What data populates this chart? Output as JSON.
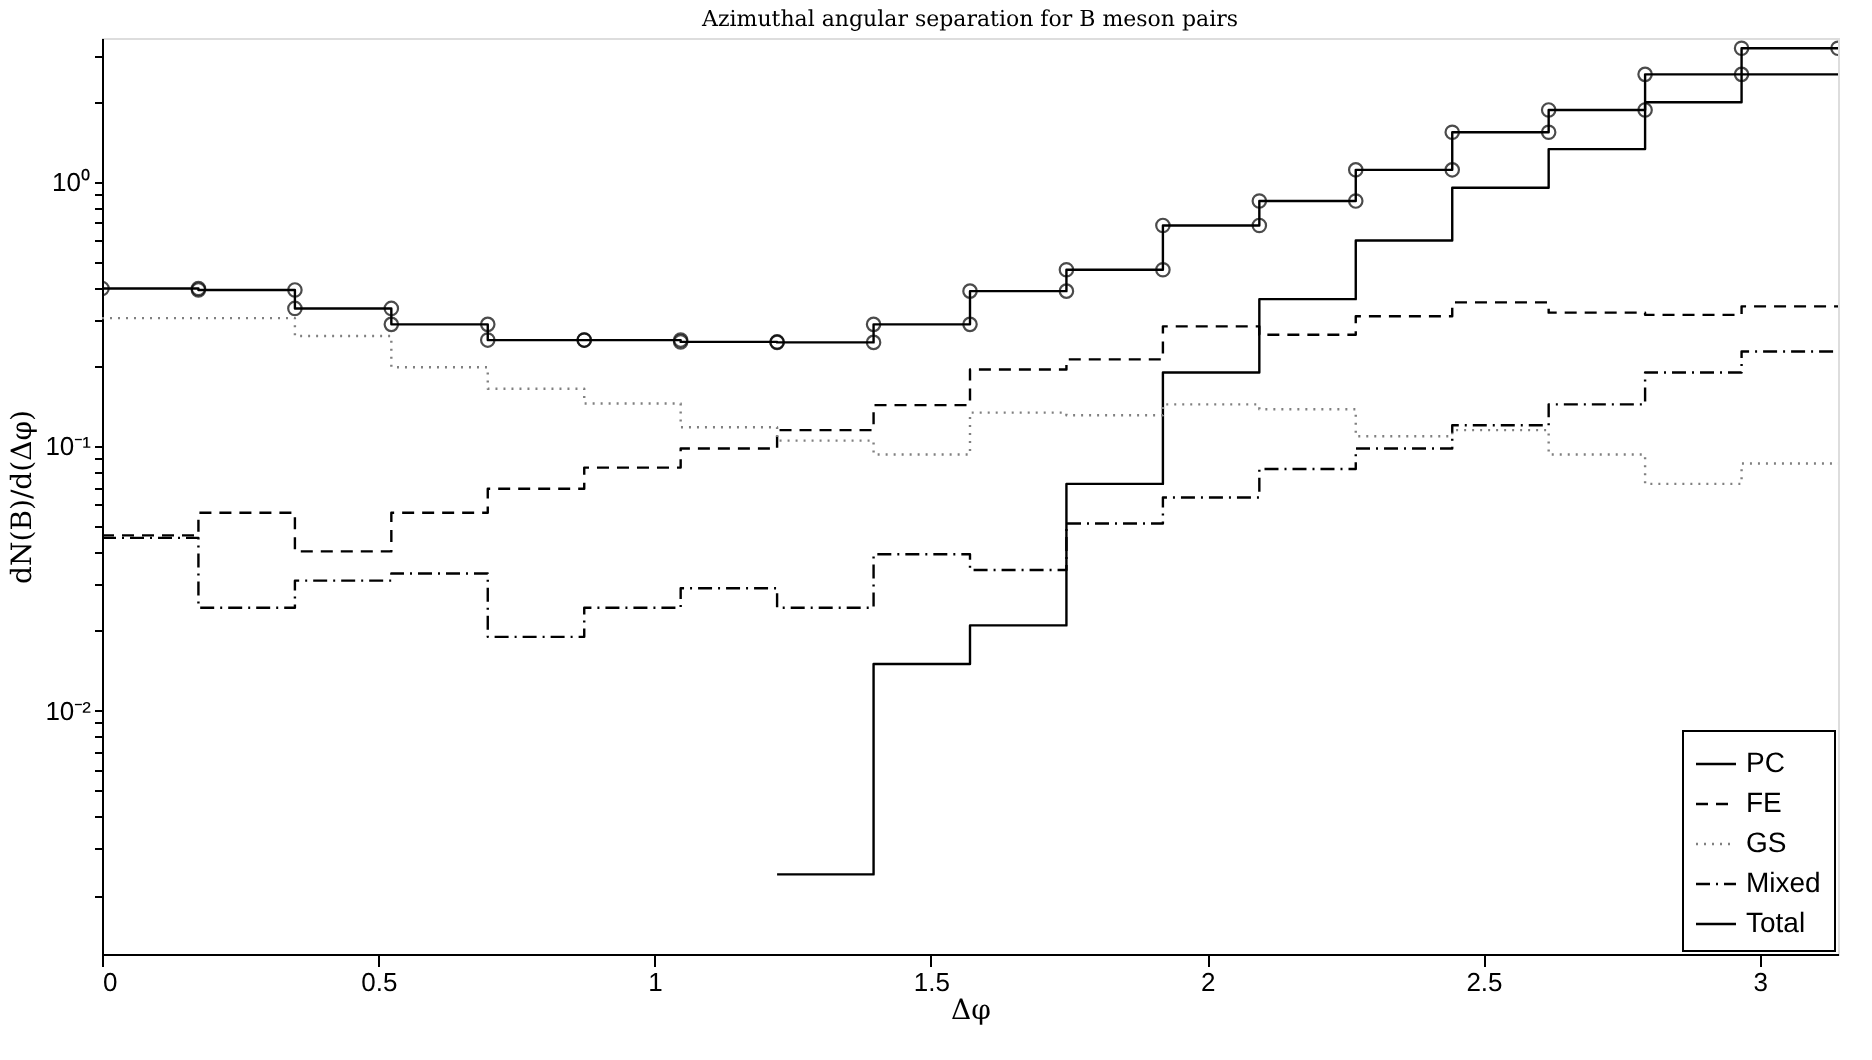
{
  "chart_data": {
    "type": "step",
    "title": "Azimuthal angular separation for B meson pairs",
    "xlabel": "Δφ",
    "ylabel": "dN(B)/d(Δφ)",
    "x": [
      0,
      0.1745,
      0.3491,
      0.5236,
      0.6981,
      0.8727,
      1.0472,
      1.2217,
      1.3963,
      1.5708,
      1.7453,
      1.9199,
      2.0944,
      2.2689,
      2.4435,
      2.618,
      2.7925,
      2.9671,
      3.1416
    ],
    "series": [
      {
        "name": "PC",
        "color": "#000000",
        "line_style": "solid",
        "values": [
          null,
          null,
          null,
          null,
          null,
          null,
          null,
          0.0024,
          0.015,
          0.021,
          0.072,
          0.19,
          0.36,
          0.6,
          0.95,
          1.33,
          2.0,
          2.55,
          2.55
        ]
      },
      {
        "name": "FE",
        "color": "#000000",
        "line_style": "dashed",
        "values": [
          0.046,
          0.056,
          0.04,
          0.056,
          0.069,
          0.083,
          0.098,
          0.115,
          0.143,
          0.195,
          0.213,
          0.284,
          0.264,
          0.31,
          0.35,
          0.32,
          0.314,
          0.338,
          0.338
        ]
      },
      {
        "name": "GS",
        "color": "#808080",
        "line_style": "dotted",
        "values": [
          0.305,
          0.305,
          0.261,
          0.199,
          0.165,
          0.145,
          0.118,
          0.105,
          0.093,
          0.134,
          0.131,
          0.144,
          0.138,
          0.109,
          0.115,
          0.093,
          0.072,
          0.086,
          0.086
        ]
      },
      {
        "name": "Mixed",
        "color": "#000000",
        "line_style": "dashdot",
        "values": [
          0.045,
          0.0245,
          0.031,
          0.033,
          0.019,
          0.0245,
          0.029,
          0.0245,
          0.039,
          0.034,
          0.051,
          0.064,
          0.082,
          0.098,
          0.12,
          0.144,
          0.19,
          0.228,
          0.228
        ]
      },
      {
        "name": "Total",
        "type": "line",
        "color": "#000000",
        "line_style": "solid",
        "marker": "circle",
        "x": [
          0,
          0.1745,
          0.1745,
          0.3491,
          0.3491,
          0.5236,
          0.5236,
          0.6981,
          0.6981,
          0.8727,
          0.8727,
          1.0472,
          1.0472,
          1.2217,
          1.2217,
          1.3963,
          1.3963,
          1.5708,
          1.5708,
          1.7453,
          1.7453,
          1.9199,
          1.9199,
          2.0944,
          2.0944,
          2.2689,
          2.2689,
          2.4435,
          2.4435,
          2.618,
          2.618,
          2.7925,
          2.7925,
          2.9671,
          2.9671,
          3.1416
        ],
        "values": [
          0.395,
          0.395,
          0.39,
          0.39,
          0.332,
          0.332,
          0.289,
          0.289,
          0.252,
          0.252,
          0.252,
          0.252,
          0.248,
          0.248,
          0.247,
          0.247,
          0.289,
          0.289,
          0.386,
          0.386,
          0.465,
          0.465,
          0.684,
          0.684,
          0.846,
          0.846,
          1.11,
          1.11,
          1.54,
          1.54,
          1.87,
          1.87,
          2.55,
          2.55,
          3.2,
          3.2
        ]
      }
    ],
    "log": "y",
    "xlim": [
      0,
      3.1416
    ],
    "ylim": [
      0.0012,
      3.5
    ],
    "xticks": [
      0,
      0.5,
      1,
      1.5,
      2,
      2.5,
      3
    ],
    "yticks": [
      {
        "value": 0.01,
        "label": "10⁻²"
      },
      {
        "value": 0.1,
        "label": "10⁻¹"
      },
      {
        "value": 1,
        "label": "10⁰"
      },
      {
        "value": 0.002,
        "label": null
      },
      {
        "value": 0.003,
        "label": null
      },
      {
        "value": 0.004,
        "label": null
      },
      {
        "value": 0.005,
        "label": null
      },
      {
        "value": 0.006,
        "label": null
      },
      {
        "value": 0.007,
        "label": null
      },
      {
        "value": 0.008,
        "label": null
      },
      {
        "value": 0.009,
        "label": null
      },
      {
        "value": 0.02,
        "label": null
      },
      {
        "value": 0.03,
        "label": null
      },
      {
        "value": 0.04,
        "label": null
      },
      {
        "value": 0.05,
        "label": null
      },
      {
        "value": 0.06,
        "label": null
      },
      {
        "value": 0.07,
        "label": null
      },
      {
        "value": 0.08,
        "label": null
      },
      {
        "value": 0.09,
        "label": null
      },
      {
        "value": 0.2,
        "label": null
      },
      {
        "value": 0.3,
        "label": null
      },
      {
        "value": 0.4,
        "label": null
      },
      {
        "value": 0.5,
        "label": null
      },
      {
        "value": 0.6,
        "label": null
      },
      {
        "value": 0.7,
        "label": null
      },
      {
        "value": 0.8,
        "label": null
      },
      {
        "value": 0.9,
        "label": null
      },
      {
        "value": 2,
        "label": null
      },
      {
        "value": 3,
        "label": null
      }
    ],
    "grid": false,
    "legend": "bottom right"
  }
}
